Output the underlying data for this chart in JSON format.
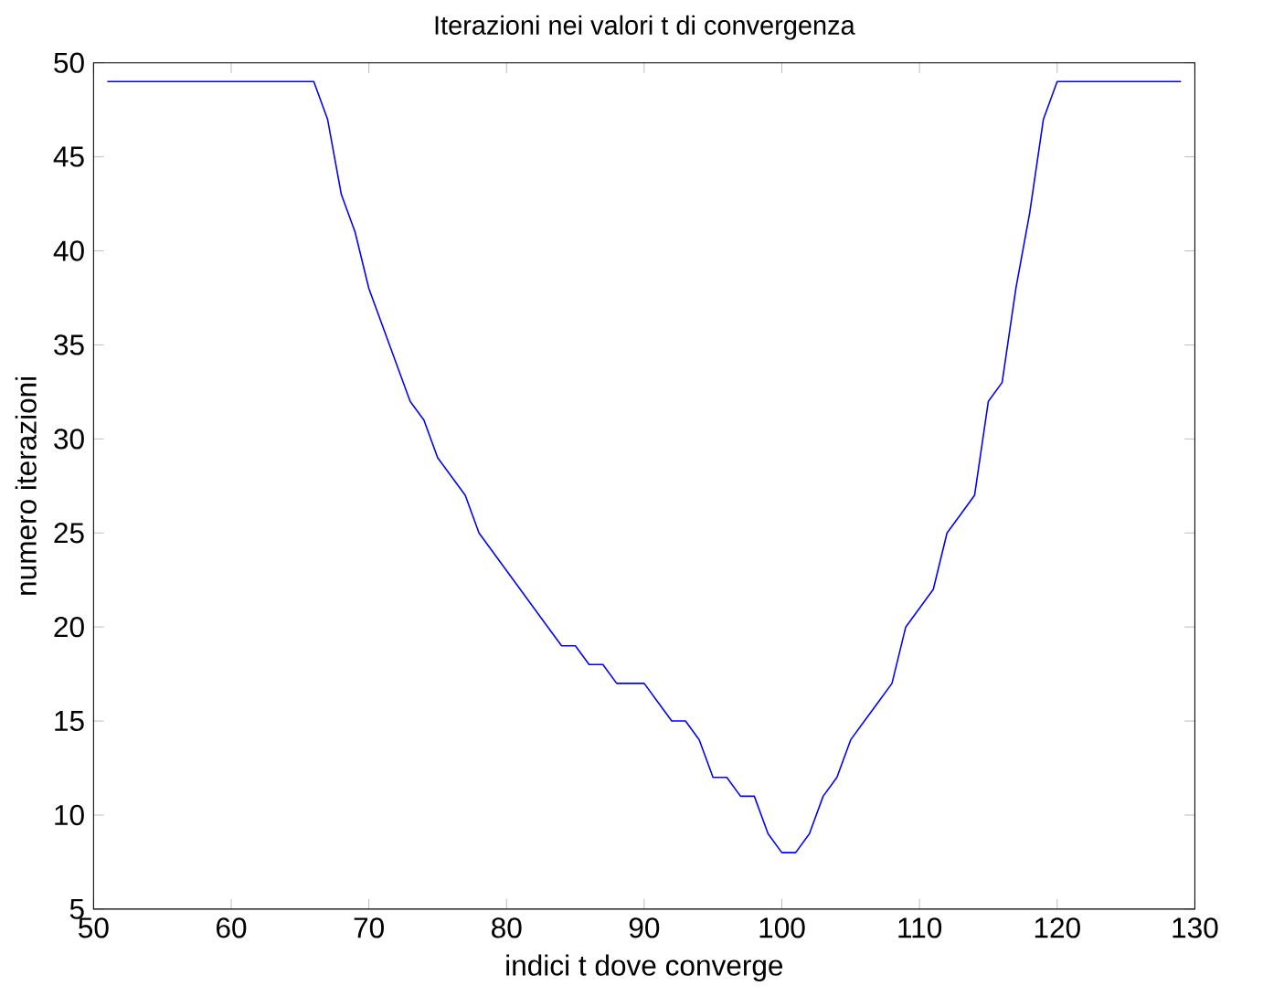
{
  "chart_data": {
    "type": "line",
    "title": "Iterazioni nei valori t di convergenza",
    "xlabel": "indici t dove converge",
    "ylabel": "numero iterazioni",
    "x": [
      51,
      52,
      53,
      54,
      55,
      56,
      57,
      58,
      59,
      60,
      61,
      62,
      63,
      64,
      65,
      66,
      67,
      68,
      69,
      70,
      71,
      72,
      73,
      74,
      75,
      76,
      77,
      78,
      79,
      80,
      81,
      82,
      83,
      84,
      85,
      86,
      87,
      88,
      89,
      90,
      91,
      92,
      93,
      94,
      95,
      96,
      97,
      98,
      99,
      100,
      101,
      102,
      103,
      104,
      105,
      106,
      107,
      108,
      109,
      110,
      111,
      112,
      113,
      114,
      115,
      116,
      117,
      118,
      119,
      120,
      121,
      122,
      123,
      124,
      125,
      126,
      127,
      128,
      129
    ],
    "series": [
      {
        "color": "#0000ff",
        "values": [
          49,
          49,
          49,
          49,
          49,
          49,
          49,
          49,
          49,
          49,
          49,
          49,
          49,
          49,
          49,
          49,
          47,
          43,
          41,
          38,
          36,
          34,
          32,
          31,
          29,
          28,
          27,
          25,
          24,
          23,
          22,
          21,
          20,
          19,
          19,
          18,
          18,
          17,
          17,
          17,
          16,
          15,
          15,
          14,
          12,
          12,
          11,
          11,
          9,
          8,
          8,
          9,
          11,
          12,
          14,
          15,
          16,
          17,
          20,
          21,
          22,
          25,
          26,
          27,
          32,
          33,
          38,
          42,
          47,
          49,
          49,
          49,
          49,
          49,
          49,
          49,
          49,
          49,
          49
        ]
      }
    ],
    "xlim": [
      50,
      130
    ],
    "ylim": [
      5,
      50
    ],
    "xticks": [
      50,
      60,
      70,
      80,
      90,
      100,
      110,
      120,
      130
    ],
    "yticks": [
      5,
      10,
      15,
      20,
      25,
      30,
      35,
      40,
      45,
      50
    ],
    "marker": "none",
    "line_style": "solid"
  }
}
